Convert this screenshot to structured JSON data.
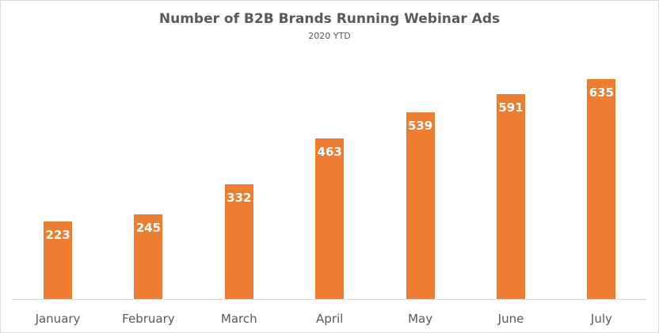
{
  "chart_data": {
    "type": "bar",
    "title": "Number of B2B Brands Running Webinar Ads",
    "subtitle": "2020 YTD",
    "categories": [
      "January",
      "February",
      "March",
      "April",
      "May",
      "June",
      "July"
    ],
    "values": [
      223,
      245,
      332,
      463,
      539,
      591,
      635
    ],
    "labels": [
      "223",
      "245",
      "332",
      "463",
      "539",
      "591",
      "635"
    ],
    "xlabel": "",
    "ylabel": "",
    "ylim": [
      0,
      700
    ],
    "grid": false,
    "legend": null,
    "bar_color": "#ED7D31"
  }
}
